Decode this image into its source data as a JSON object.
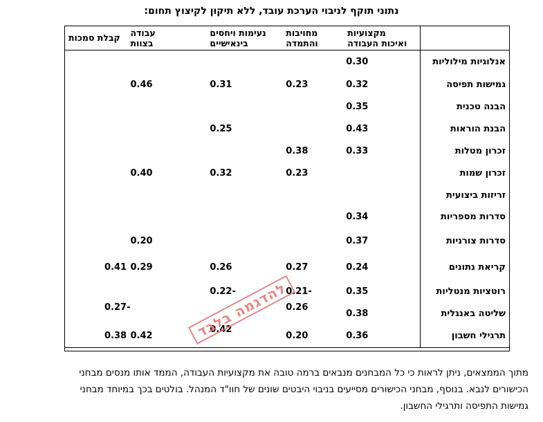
{
  "title": "נתוני תוקף לניבוי הערכת עובד, ללא תיקון לקיצוץ תחום:",
  "columns": {
    "c1": [
      "מקצועיות",
      "ואיכות העבודה"
    ],
    "c2": [
      "מחויבות",
      "והתמדה"
    ],
    "c3": [
      "נעימות ויחסים",
      "בינאישיים"
    ],
    "c4": [
      "עבודה",
      "בצוות"
    ],
    "c5": [
      "קבלת סמכות"
    ]
  },
  "rows": [
    {
      "label": "אנלוגיות מילוליות",
      "c1": "0.30",
      "c2": "",
      "c3": "",
      "c4": "",
      "c5": ""
    },
    {
      "label": "גמישות תפיסה",
      "c1": "0.32",
      "c2": "0.23",
      "c3": "0.31",
      "c4": "0.46",
      "c5": ""
    },
    {
      "label": "הבנה טכנית",
      "c1": "0.35",
      "c2": "",
      "c3": "",
      "c4": "",
      "c5": ""
    },
    {
      "label": "הבנת הוראות",
      "c1": "0.43",
      "c2": "",
      "c3": "0.25",
      "c4": "",
      "c5": ""
    },
    {
      "label": "זכרון מטלות",
      "c1": "0.33",
      "c2": "0.38",
      "c3": "",
      "c4": "",
      "c5": ""
    },
    {
      "label": "זכרון שמות",
      "c1": "",
      "c2": "0.23",
      "c3": "0.32",
      "c4": "0.40",
      "c5": ""
    },
    {
      "label": "זריזות ביצועית",
      "c1": "",
      "c2": "",
      "c3": "",
      "c4": "",
      "c5": ""
    },
    {
      "label": "סדרות מספריות",
      "c1": "0.34",
      "c2": "",
      "c3": "",
      "c4": "",
      "c5": ""
    },
    {
      "label": "סדרות צורניות",
      "c1": "0.37",
      "c2": "",
      "c3": "",
      "c4": "0.20",
      "c5": ""
    },
    {
      "label": "קריאת נתונים",
      "c1": "0.24",
      "c2": "0.27",
      "c3": "0.26",
      "c4": "0.29",
      "c5": "0.41"
    },
    {
      "label": "רוטציות מנטליות",
      "c1": "0.35",
      "c2": "-0.21",
      "c3": "-0.22",
      "c4": "",
      "c5": ""
    },
    {
      "label": "שליטה באנגלית",
      "c1": "0.38",
      "c2": "0.26",
      "c3": "",
      "c4": "",
      "c5": "-0.27"
    },
    {
      "label": "תרגילי חשבון",
      "c1": "0.36",
      "c2": "0.20",
      "c3": "0.42",
      "c4": "0.42",
      "c5": "0.38"
    }
  ],
  "paragraph": [
    "מתוך הממצאים, ניתן לראות כי כל המבחנים מנבאים ברמה טובה את מקצועיות העבודה, הממד אותו מנסים מבחני",
    "הכישורים לנבא. בנוסף, מבחני הכישורים מסייעים בניבוי היבטים שונים של חוו\"ד המנהל. בולטים בכך במיוחד מבחני",
    "גמישות התפיסה ותרגילי החשבון."
  ],
  "watermark": "להדגמה בלבד",
  "colors": {
    "watermark": "#e77a7a"
  }
}
